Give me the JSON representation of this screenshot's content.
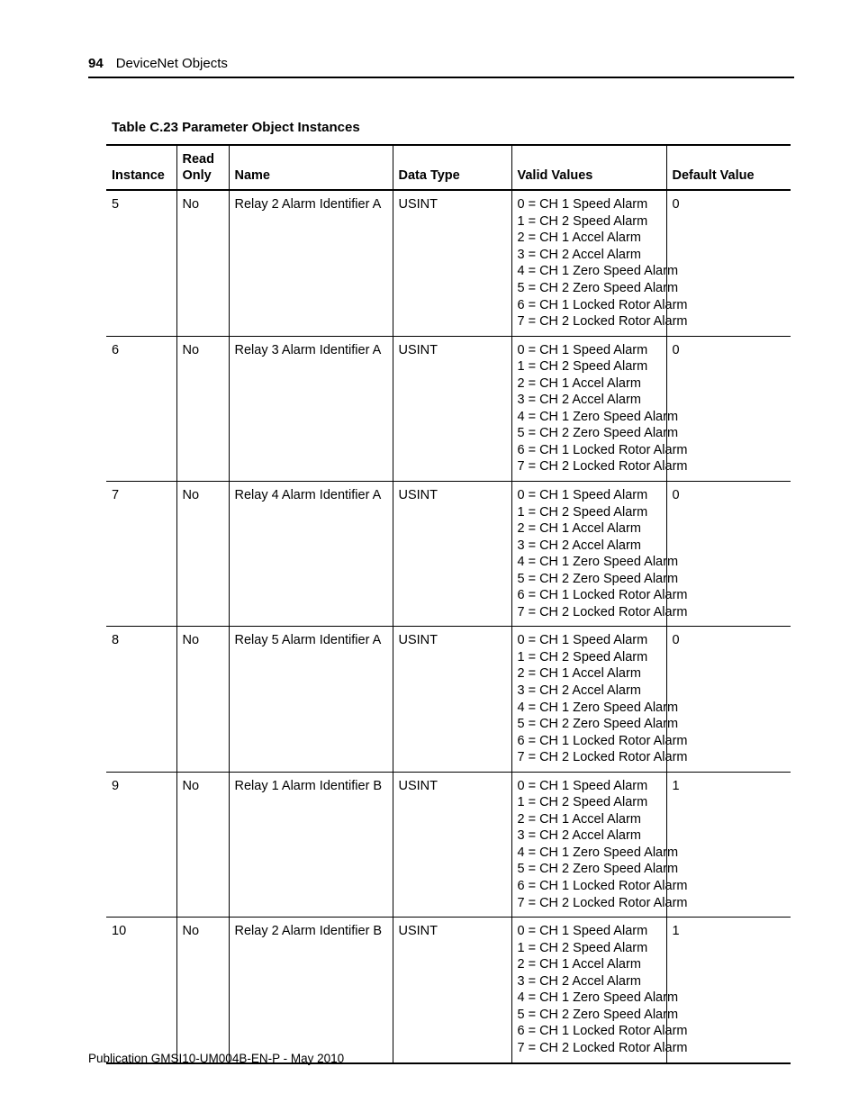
{
  "header": {
    "page_number": "94",
    "section": "DeviceNet Objects"
  },
  "table": {
    "caption": "Table C.23 Parameter Object Instances",
    "columns": {
      "instance": "Instance",
      "read_only_line1": "Read",
      "read_only_line2": "Only",
      "name": "Name",
      "data_type": "Data Type",
      "valid_values": "Valid Values",
      "default_value": "Default Value"
    },
    "rows": [
      {
        "instance": "5",
        "read_only": "No",
        "name": "Relay 2 Alarm Identifier A",
        "data_type": "USINT",
        "valid_values": [
          "0 = CH 1 Speed Alarm",
          "1 = CH 2 Speed Alarm",
          "2 = CH 1 Accel Alarm",
          "3 = CH 2 Accel Alarm",
          "4 = CH 1 Zero Speed Alarm",
          "5 = CH 2 Zero Speed Alarm",
          "6 = CH 1 Locked Rotor Alarm",
          "7 = CH 2 Locked Rotor Alarm"
        ],
        "default_value": "0"
      },
      {
        "instance": "6",
        "read_only": "No",
        "name": "Relay 3 Alarm Identifier A",
        "data_type": "USINT",
        "valid_values": [
          "0 = CH 1 Speed Alarm",
          "1 = CH 2 Speed Alarm",
          "2 = CH 1 Accel Alarm",
          "3 = CH 2 Accel Alarm",
          "4 = CH 1 Zero Speed Alarm",
          "5 = CH 2 Zero Speed Alarm",
          "6 = CH 1 Locked Rotor Alarm",
          "7 = CH 2 Locked Rotor Alarm"
        ],
        "default_value": "0"
      },
      {
        "instance": "7",
        "read_only": "No",
        "name": "Relay 4 Alarm Identifier A",
        "data_type": "USINT",
        "valid_values": [
          "0 = CH 1 Speed Alarm",
          "1 = CH 2 Speed Alarm",
          "2 = CH 1 Accel Alarm",
          "3 = CH 2 Accel Alarm",
          "4 = CH 1 Zero Speed Alarm",
          "5 = CH 2 Zero Speed Alarm",
          "6 = CH 1 Locked Rotor Alarm",
          "7 = CH 2 Locked Rotor Alarm"
        ],
        "default_value": "0"
      },
      {
        "instance": "8",
        "read_only": "No",
        "name": "Relay 5 Alarm Identifier A",
        "data_type": "USINT",
        "valid_values": [
          "0 = CH 1 Speed Alarm",
          "1 = CH 2 Speed Alarm",
          "2 = CH 1 Accel Alarm",
          "3 = CH 2 Accel Alarm",
          "4 = CH 1 Zero Speed Alarm",
          "5 = CH 2 Zero Speed Alarm",
          "6 = CH 1 Locked Rotor Alarm",
          "7 = CH 2 Locked Rotor Alarm"
        ],
        "default_value": "0"
      },
      {
        "instance": "9",
        "read_only": "No",
        "name": "Relay 1 Alarm Identifier B",
        "data_type": "USINT",
        "valid_values": [
          "0 = CH 1 Speed Alarm",
          "1 = CH 2 Speed Alarm",
          "2 = CH 1 Accel Alarm",
          "3 = CH 2 Accel Alarm",
          "4 = CH 1 Zero Speed Alarm",
          "5 = CH 2 Zero Speed Alarm",
          "6 = CH 1 Locked Rotor Alarm",
          "7 = CH 2 Locked Rotor Alarm"
        ],
        "default_value": "1"
      },
      {
        "instance": "10",
        "read_only": "No",
        "name": "Relay 2 Alarm Identifier B",
        "data_type": "USINT",
        "valid_values": [
          "0 = CH 1 Speed Alarm",
          "1 = CH 2 Speed Alarm",
          "2 = CH 1 Accel Alarm",
          "3 = CH 2 Accel Alarm",
          "4 = CH 1 Zero Speed Alarm",
          "5 = CH 2 Zero Speed Alarm",
          "6 = CH 1 Locked Rotor Alarm",
          "7 = CH 2 Locked Rotor Alarm"
        ],
        "default_value": "1"
      }
    ]
  },
  "footer": {
    "publication": "Publication GMSI10-UM004B-EN-P - May 2010"
  }
}
